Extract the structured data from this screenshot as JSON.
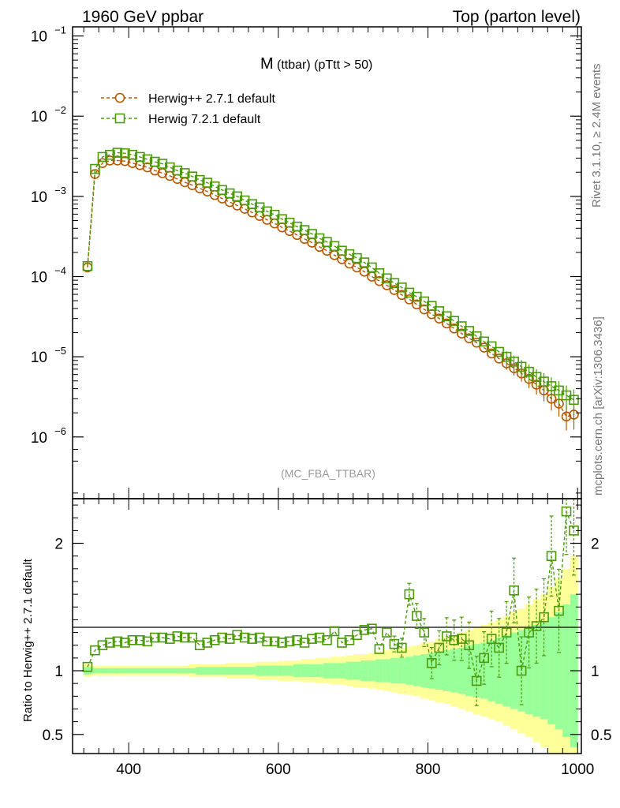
{
  "header": {
    "left": "1960 GeV ppbar",
    "right": "Top (parton level)"
  },
  "side": {
    "rivet": "Rivet 3.1.10, ≥ 2.4M events",
    "mcplots": "mcplots.cern.ch [arXiv:1306.3436]"
  },
  "chart_data": [
    {
      "type": "line",
      "title": "M",
      "subtitle": "(ttbar) (pTtt > 50)",
      "watermark": "(MC_FBA_TTBAR)",
      "yscale": "log",
      "xlim": [
        325,
        1005
      ],
      "ylim": [
        1.7e-07,
        0.13
      ],
      "yticks": [
        "10^-1",
        "10^-2",
        "10^-3",
        "10^-4",
        "10^-5",
        "10^-6"
      ],
      "legend_position": "top-left",
      "x": [
        345,
        355,
        365,
        375,
        385,
        395,
        405,
        415,
        425,
        435,
        445,
        455,
        465,
        475,
        485,
        495,
        505,
        515,
        525,
        535,
        545,
        555,
        565,
        575,
        585,
        595,
        605,
        615,
        625,
        635,
        645,
        655,
        665,
        675,
        685,
        695,
        705,
        715,
        725,
        735,
        745,
        755,
        765,
        775,
        785,
        795,
        805,
        815,
        825,
        835,
        845,
        855,
        865,
        875,
        885,
        895,
        905,
        915,
        925,
        935,
        945,
        955,
        965,
        975,
        985,
        995
      ],
      "series": [
        {
          "name": "Herwig++ 2.7.1 default",
          "color": "#b35900",
          "marker": "circle",
          "values": [
            0.00013,
            0.0019,
            0.0026,
            0.0028,
            0.0028,
            0.00275,
            0.0026,
            0.00245,
            0.0023,
            0.0021,
            0.00195,
            0.0018,
            0.00165,
            0.0015,
            0.00138,
            0.00126,
            0.00115,
            0.00104,
            0.00094,
            0.00085,
            0.00077,
            0.0007,
            0.00063,
            0.00057,
            0.00051,
            0.00046,
            0.00041,
            0.00037,
            0.00033,
            0.000295,
            0.000265,
            0.000235,
            0.00021,
            0.000185,
            0.000165,
            0.000145,
            0.00013,
            0.000115,
            0.0001,
            8.8e-05,
            7.8e-05,
            6.8e-05,
            5.9e-05,
            5.2e-05,
            4.5e-05,
            3.9e-05,
            3.4e-05,
            3e-05,
            2.6e-05,
            2.25e-05,
            1.95e-05,
            1.7e-05,
            1.5e-05,
            1.3e-05,
            1.1e-05,
            9.5e-06,
            8.3e-06,
            7.2e-06,
            6.2e-06,
            5.3e-06,
            4.5e-06,
            3.8e-06,
            3e-06,
            2.6e-06,
            1.8e-06,
            1.9e-06
          ]
        },
        {
          "name": "Herwig 7.2.1 default",
          "color": "#4c9a0b",
          "marker": "square",
          "values": [
            0.000135,
            0.0022,
            0.0031,
            0.0033,
            0.0035,
            0.00345,
            0.0033,
            0.0031,
            0.0029,
            0.0027,
            0.00255,
            0.0023,
            0.0021,
            0.00195,
            0.00177,
            0.0016,
            0.00148,
            0.00133,
            0.0012,
            0.00109,
            0.001,
            0.00089,
            0.0008,
            0.00073,
            0.00065,
            0.00059,
            0.00052,
            0.00047,
            0.00042,
            0.00038,
            0.00034,
            0.0003,
            0.00027,
            0.00024,
            0.00021,
            0.00019,
            0.00017,
            0.00015,
            0.00013,
            0.00011,
            9.5e-05,
            8.3e-05,
            7.3e-05,
            6.3e-05,
            5.6e-05,
            4.9e-05,
            4.3e-05,
            3.7e-05,
            3.2e-05,
            2.8e-05,
            2.4e-05,
            2.1e-05,
            1.8e-05,
            1.55e-05,
            1.35e-05,
            1.15e-05,
            1e-05,
            8.7e-06,
            7.5e-06,
            6.5e-06,
            5.6e-06,
            4.9e-06,
            4.3e-06,
            3.8e-06,
            3.3e-06,
            2.9e-06
          ]
        }
      ]
    },
    {
      "type": "line",
      "ylabel": "Ratio to Herwig++ 2.7.1 default",
      "xlim": [
        325,
        1005
      ],
      "ylim": [
        0.35,
        2.35
      ],
      "xticks": [
        400,
        600,
        800,
        1000
      ],
      "yticks": [
        0.5,
        1,
        2
      ],
      "x": [
        345,
        355,
        365,
        375,
        385,
        395,
        405,
        415,
        425,
        435,
        445,
        455,
        465,
        475,
        485,
        495,
        505,
        515,
        525,
        535,
        545,
        555,
        565,
        575,
        585,
        595,
        605,
        615,
        625,
        635,
        645,
        655,
        665,
        675,
        685,
        695,
        705,
        715,
        725,
        735,
        745,
        755,
        765,
        775,
        785,
        795,
        805,
        815,
        825,
        835,
        845,
        855,
        865,
        875,
        885,
        895,
        905,
        915,
        925,
        935,
        945,
        955,
        965,
        975,
        985,
        995
      ],
      "bands": {
        "green_halfwidth": [
          0.03,
          0.02,
          0.02,
          0.02,
          0.02,
          0.02,
          0.02,
          0.02,
          0.02,
          0.02,
          0.02,
          0.02,
          0.02,
          0.02,
          0.02,
          0.03,
          0.03,
          0.03,
          0.03,
          0.03,
          0.03,
          0.03,
          0.03,
          0.04,
          0.04,
          0.04,
          0.04,
          0.04,
          0.05,
          0.05,
          0.05,
          0.05,
          0.06,
          0.06,
          0.06,
          0.07,
          0.07,
          0.08,
          0.08,
          0.09,
          0.09,
          0.1,
          0.1,
          0.11,
          0.12,
          0.13,
          0.14,
          0.15,
          0.16,
          0.17,
          0.18,
          0.2,
          0.21,
          0.22,
          0.24,
          0.26,
          0.28,
          0.3,
          0.32,
          0.34,
          0.36,
          0.38,
          0.42,
          0.46,
          0.52,
          0.6
        ],
        "yellow_halfwidth": [
          0.05,
          0.04,
          0.04,
          0.04,
          0.04,
          0.04,
          0.04,
          0.04,
          0.04,
          0.04,
          0.04,
          0.04,
          0.04,
          0.04,
          0.05,
          0.05,
          0.05,
          0.05,
          0.05,
          0.06,
          0.06,
          0.06,
          0.06,
          0.07,
          0.07,
          0.07,
          0.08,
          0.08,
          0.08,
          0.09,
          0.09,
          0.1,
          0.1,
          0.11,
          0.11,
          0.12,
          0.13,
          0.13,
          0.14,
          0.15,
          0.16,
          0.17,
          0.18,
          0.19,
          0.2,
          0.22,
          0.23,
          0.25,
          0.26,
          0.28,
          0.3,
          0.32,
          0.34,
          0.36,
          0.38,
          0.4,
          0.43,
          0.46,
          0.49,
          0.52,
          0.56,
          0.6,
          0.66,
          0.72,
          0.8,
          0.9
        ]
      },
      "series": [
        {
          "name": "Herwig 7.2.1 default",
          "color": "#4c9a0b",
          "values": [
            1.03,
            1.16,
            1.2,
            1.22,
            1.23,
            1.22,
            1.24,
            1.24,
            1.23,
            1.26,
            1.26,
            1.25,
            1.27,
            1.26,
            1.26,
            1.2,
            1.22,
            1.24,
            1.26,
            1.25,
            1.28,
            1.26,
            1.25,
            1.26,
            1.23,
            1.23,
            1.22,
            1.23,
            1.24,
            1.22,
            1.25,
            1.26,
            1.24,
            1.31,
            1.22,
            1.24,
            1.28,
            1.32,
            1.33,
            1.17,
            1.3,
            1.21,
            1.18,
            1.6,
            1.43,
            1.3,
            1.06,
            1.18,
            1.27,
            1.24,
            1.25,
            1.2,
            0.92,
            1.1,
            1.25,
            1.18,
            1.3,
            1.63,
            1.0,
            1.3,
            1.35,
            1.42,
            1.9,
            1.47,
            2.25,
            2.1
          ]
        }
      ]
    }
  ]
}
